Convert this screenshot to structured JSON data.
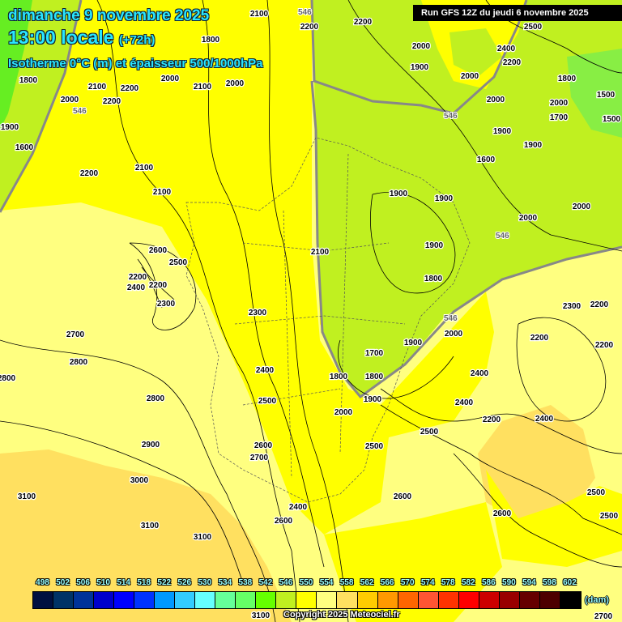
{
  "header": {
    "date": "dimanche 9 novembre 2025",
    "time": "13:00 locale",
    "lead": "(+72h)",
    "parameter": "Isotherme 0°C (m) et épaisseur 500/1000hPa",
    "run": "Run GFS 12Z du jeudi 6 novembre 2025"
  },
  "colorbar": {
    "unit": "(dam)",
    "labels": [
      "498",
      "502",
      "506",
      "510",
      "514",
      "518",
      "522",
      "526",
      "530",
      "534",
      "538",
      "542",
      "546",
      "550",
      "554",
      "558",
      "562",
      "566",
      "570",
      "574",
      "578",
      "582",
      "586",
      "590",
      "594",
      "598",
      "602"
    ],
    "colors": [
      "#001040",
      "#003366",
      "#003399",
      "#0000cc",
      "#0000ff",
      "#0033ff",
      "#0099ff",
      "#33ccff",
      "#66ffff",
      "#66ff99",
      "#66ff66",
      "#66ff00",
      "#c0f020",
      "#ffff00",
      "#ffff80",
      "#ffe060",
      "#ffcc00",
      "#ff9900",
      "#ff6600",
      "#ff5533",
      "#ff3300",
      "#ff0000",
      "#cc0000",
      "#990000",
      "#660000",
      "#4d0000",
      "#000000"
    ]
  },
  "copyright": "Copyright 2025 Meteociel.fr",
  "map": {
    "thickness_contour_label": "546",
    "freezing_level_labels": [
      "1600",
      "1800",
      "2100",
      "2200",
      "2100",
      "2000",
      "2100",
      "2200",
      "2000",
      "2100",
      "1800",
      "2000",
      "1900",
      "2200",
      "2100",
      "2200",
      "2000",
      "2000",
      "2000",
      "1900",
      "2500",
      "2400",
      "2200",
      "2000",
      "1700",
      "1600",
      "1500",
      "1500",
      "1800",
      "1900",
      "2000",
      "2000",
      "1900",
      "1900",
      "1900",
      "2100",
      "2600",
      "2500",
      "2200",
      "2400",
      "2200",
      "2300",
      "2700",
      "2800",
      "2800",
      "2200",
      "2300",
      "2400",
      "2500",
      "2800",
      "2900",
      "2600",
      "2700",
      "3000",
      "3100",
      "3100",
      "3100",
      "2600",
      "2400",
      "2500",
      "2000",
      "2500",
      "2400",
      "1900",
      "1800",
      "1900",
      "1700",
      "1900",
      "2000",
      "2400",
      "2200",
      "2400",
      "2300",
      "2200",
      "2200",
      "2200",
      "2600",
      "2600",
      "2500",
      "2500",
      "2700",
      "3100",
      "1800",
      "1800"
    ]
  }
}
